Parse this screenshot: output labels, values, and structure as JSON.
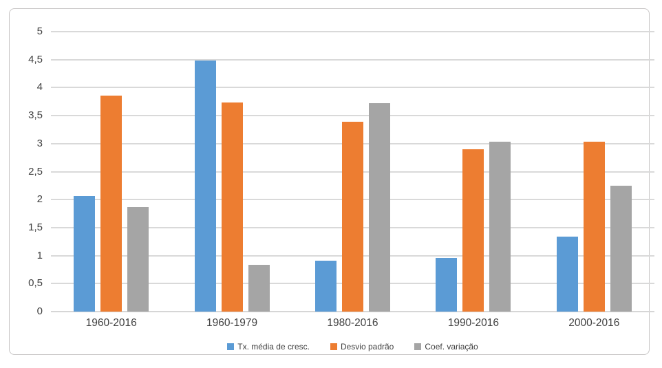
{
  "chart_data": {
    "type": "bar",
    "categories": [
      "1960-2016",
      "1960-1979",
      "1980-2016",
      "1990-2016",
      "2000-2016"
    ],
    "series": [
      {
        "name": "Tx. média de cresc.",
        "color": "#5B9BD5",
        "values": [
          2.07,
          4.48,
          0.91,
          0.96,
          1.34
        ]
      },
      {
        "name": "Desvio padrão",
        "color": "#ED7D31",
        "values": [
          3.86,
          3.73,
          3.39,
          2.9,
          3.03
        ]
      },
      {
        "name": "Coef. variação",
        "color": "#A5A5A5",
        "values": [
          1.87,
          0.84,
          3.72,
          3.04,
          2.25
        ]
      }
    ],
    "title": "",
    "xlabel": "",
    "ylabel": "",
    "ylim": [
      0,
      5
    ],
    "ytick_step": 0.5,
    "ytick_labels": [
      "0",
      "0,5",
      "1",
      "1,5",
      "2",
      "2,5",
      "3",
      "3,5",
      "4",
      "4,5",
      "5"
    ],
    "grid": true,
    "legend_position": "bottom"
  },
  "colors": {
    "gridline": "#D9D9D9",
    "axis_text": "#404040",
    "frame_border": "#C8C6C6",
    "background": "#FFFFFF"
  }
}
